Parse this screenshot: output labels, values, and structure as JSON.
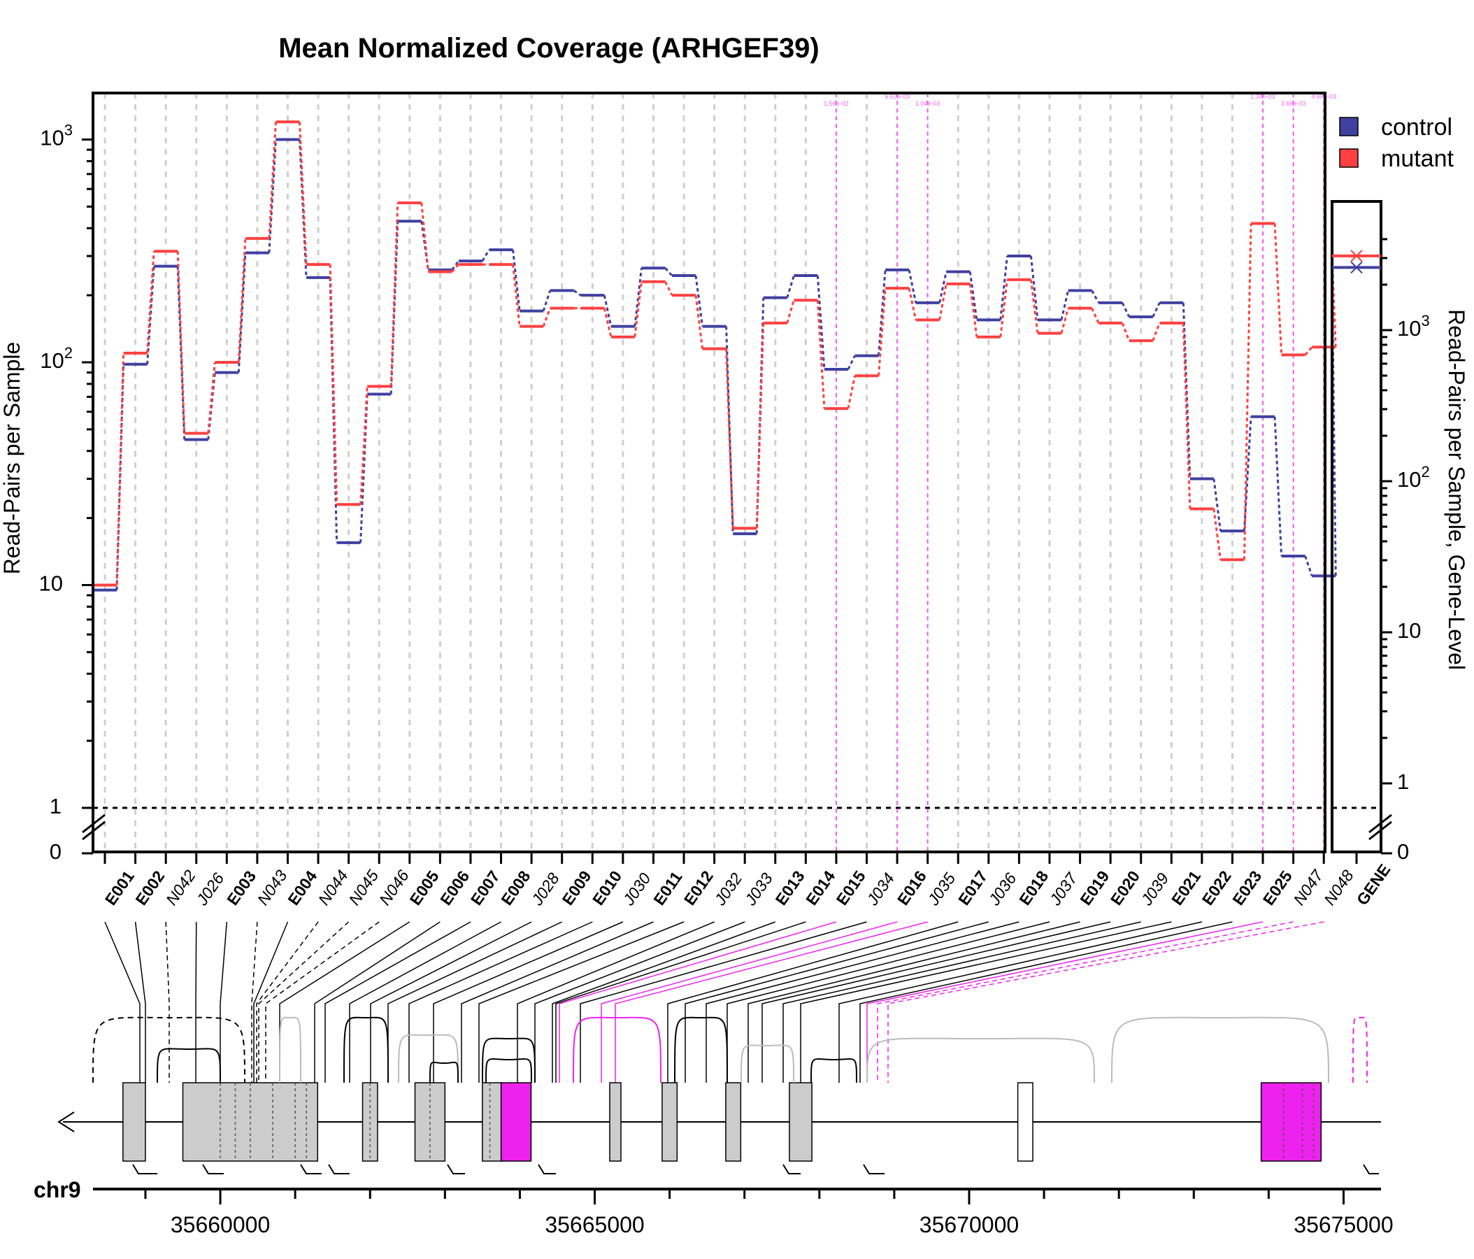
{
  "chart_data": {
    "type": "line",
    "title": "Mean Normalized Coverage (ARHGEF39)",
    "ylabel": "Read-Pairs per Sample",
    "ylabel_right": "Read-Pairs per Sample, Gene-Level",
    "yscale": "log",
    "y_break_note": "axis break between 0 and 1",
    "yticks_left": [
      "0",
      "1",
      "10",
      "10^2",
      "10^3"
    ],
    "yticks_right": [
      "0",
      "1",
      "10",
      "10^2",
      "10^3"
    ],
    "legend": {
      "position": "top-right",
      "entries": [
        "control",
        "mutant"
      ]
    },
    "colors": {
      "control": "#4040a0",
      "mutant": "#ff4040",
      "significant": "#ee22ee",
      "exon_fill": "#cccccc",
      "sig_fill": "#ee22ee"
    },
    "features": [
      {
        "id": "E001",
        "kind": "exon",
        "sig": false
      },
      {
        "id": "E002",
        "kind": "exon",
        "sig": false
      },
      {
        "id": "N042",
        "kind": "novel",
        "sig": false
      },
      {
        "id": "J026",
        "kind": "junction",
        "sig": false
      },
      {
        "id": "E003",
        "kind": "exon",
        "sig": false
      },
      {
        "id": "N043",
        "kind": "novel",
        "sig": false
      },
      {
        "id": "E004",
        "kind": "exon",
        "sig": false
      },
      {
        "id": "N044",
        "kind": "novel",
        "sig": false
      },
      {
        "id": "N045",
        "kind": "novel",
        "sig": false
      },
      {
        "id": "N046",
        "kind": "novel",
        "sig": false
      },
      {
        "id": "E005",
        "kind": "exon",
        "sig": false
      },
      {
        "id": "E006",
        "kind": "exon",
        "sig": false
      },
      {
        "id": "E007",
        "kind": "exon",
        "sig": false
      },
      {
        "id": "E008",
        "kind": "exon",
        "sig": false
      },
      {
        "id": "J028",
        "kind": "junction",
        "sig": false
      },
      {
        "id": "E009",
        "kind": "exon",
        "sig": false
      },
      {
        "id": "E010",
        "kind": "exon",
        "sig": false
      },
      {
        "id": "J030",
        "kind": "junction",
        "sig": false
      },
      {
        "id": "E011",
        "kind": "exon",
        "sig": false
      },
      {
        "id": "E012",
        "kind": "exon",
        "sig": false
      },
      {
        "id": "J032",
        "kind": "junction",
        "sig": false
      },
      {
        "id": "J033",
        "kind": "junction",
        "sig": false
      },
      {
        "id": "E013",
        "kind": "exon",
        "sig": false
      },
      {
        "id": "E014",
        "kind": "exon",
        "sig": false
      },
      {
        "id": "E015",
        "kind": "exon",
        "sig": true
      },
      {
        "id": "J034",
        "kind": "junction",
        "sig": false
      },
      {
        "id": "E016",
        "kind": "exon",
        "sig": true
      },
      {
        "id": "J035",
        "kind": "junction",
        "sig": true
      },
      {
        "id": "E017",
        "kind": "exon",
        "sig": false
      },
      {
        "id": "J036",
        "kind": "junction",
        "sig": false
      },
      {
        "id": "E018",
        "kind": "exon",
        "sig": false
      },
      {
        "id": "J037",
        "kind": "junction",
        "sig": false
      },
      {
        "id": "E019",
        "kind": "exon",
        "sig": false
      },
      {
        "id": "E020",
        "kind": "exon",
        "sig": false
      },
      {
        "id": "J039",
        "kind": "junction",
        "sig": false
      },
      {
        "id": "E021",
        "kind": "exon",
        "sig": false
      },
      {
        "id": "E022",
        "kind": "exon",
        "sig": false
      },
      {
        "id": "E023",
        "kind": "exon",
        "sig": false
      },
      {
        "id": "E025",
        "kind": "exon",
        "sig": true
      },
      {
        "id": "N047",
        "kind": "novel",
        "sig": true
      },
      {
        "id": "N048",
        "kind": "novel",
        "sig": true
      }
    ],
    "series": [
      {
        "name": "control",
        "values": [
          9.5,
          98,
          270,
          45,
          90,
          310,
          1000,
          240,
          15.5,
          72,
          430,
          260,
          285,
          320,
          170,
          210,
          200,
          145,
          265,
          245,
          145,
          17,
          195,
          245,
          93,
          107,
          260,
          185,
          255,
          155,
          300,
          155,
          210,
          185,
          160,
          185,
          30,
          17.5,
          57,
          13.5,
          11
        ]
      },
      {
        "name": "mutant",
        "values": [
          10,
          110,
          315,
          48,
          100,
          360,
          1200,
          275,
          23,
          78,
          520,
          255,
          275,
          275,
          145,
          175,
          175,
          130,
          230,
          200,
          115,
          18,
          150,
          190,
          62,
          87,
          215,
          155,
          225,
          130,
          235,
          135,
          175,
          150,
          125,
          150,
          22,
          13,
          420,
          108,
          117
        ]
      }
    ],
    "gene_level": {
      "label": "GENE",
      "control": 2600,
      "mutant": 3100
    },
    "pvalue_labels": [
      "1.56e-02",
      "6.63e-03",
      "1.04e-03",
      "1.34e-03",
      "3.66e-03",
      "4.68e-03"
    ],
    "genomic": {
      "chrom": "chr9",
      "xlim": [
        35658300,
        35675500
      ],
      "ticks": [
        35660000,
        35665000,
        35670000,
        35675000
      ],
      "tick_labels": [
        "35660000",
        "35665000",
        "35670000",
        "35675000"
      ]
    }
  }
}
